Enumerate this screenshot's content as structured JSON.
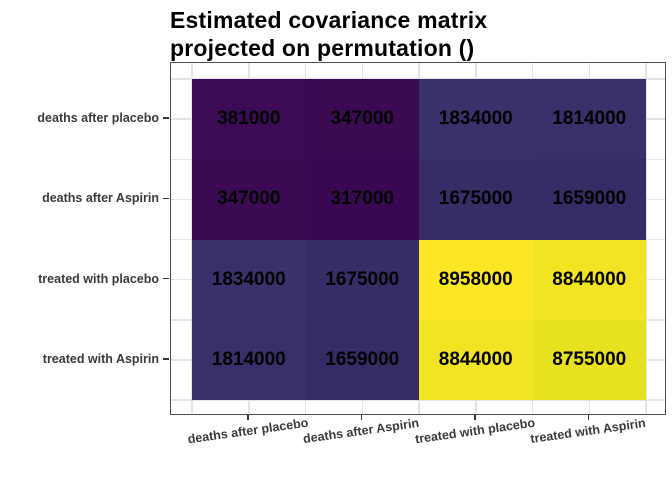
{
  "title": {
    "line1": "Estimated covariance matrix",
    "line2": "projected on permutation ()"
  },
  "chart_data": {
    "type": "heatmap",
    "title": "Estimated covariance matrix projected on permutation ()",
    "x_categories": [
      "deaths after placebo",
      "deaths after Aspirin",
      "treated with placebo",
      "treated with Aspirin"
    ],
    "y_categories": [
      "deaths after placebo",
      "deaths after Aspirin",
      "treated with placebo",
      "treated with Aspirin"
    ],
    "values": [
      [
        381000,
        347000,
        1834000,
        1814000
      ],
      [
        347000,
        317000,
        1675000,
        1659000
      ],
      [
        1834000,
        1675000,
        8958000,
        8844000
      ],
      [
        1814000,
        1659000,
        8844000,
        8755000
      ]
    ],
    "cell_colors": [
      [
        "#3C0B55",
        "#3B0A53",
        "#39316B",
        "#383069"
      ],
      [
        "#3B0A53",
        "#3A0852",
        "#372C66",
        "#362B64"
      ],
      [
        "#39316B",
        "#372C66",
        "#FDE725",
        "#F0E423"
      ],
      [
        "#383069",
        "#362B64",
        "#F0E423",
        "#E8E120"
      ]
    ],
    "colormap": "viridis",
    "value_min": 317000,
    "value_max": 8958000,
    "legend": "none",
    "grid": true,
    "x_label_angle_deg": -8
  },
  "style": {
    "panel_bg": "#FFFFFF",
    "grid_color": "#E3E3E3",
    "panel_border_color": "#4D4D4D",
    "tick_color": "#333333",
    "axis_text_color": "#3A3A3A",
    "title_color": "#000000",
    "low_color": "#440154",
    "high_color": "#FDE725"
  }
}
